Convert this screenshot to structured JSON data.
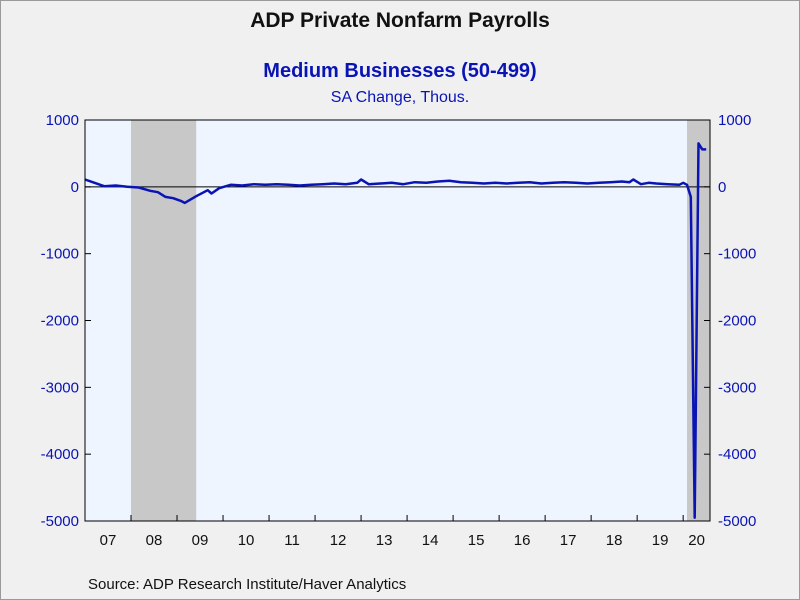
{
  "header": {
    "title": "ADP Private Nonfarm Payrolls",
    "subtitle": "Medium Businesses (50-499)",
    "units": "SA Change, Thous."
  },
  "footer": {
    "source": "Source:  ADP Research Institute/Haver Analytics"
  },
  "colors": {
    "series": "#0a14b4",
    "plot_background": "#eef5ff",
    "recession": "#c8c8c8",
    "axis_text": "#0a14b4"
  },
  "chart_data": {
    "type": "line",
    "title": "ADP Private Nonfarm Payrolls",
    "subtitle": "Medium Businesses (50-499)",
    "ylabel": "SA Change, Thous.",
    "ylim": [
      -5000,
      1000
    ],
    "yticks": [
      1000,
      0,
      -1000,
      -2000,
      -3000,
      -4000,
      -5000
    ],
    "y_axis_both_sides": true,
    "xlim": [
      "2007-01",
      "2020-08"
    ],
    "xtick_labels": [
      "07",
      "08",
      "09",
      "10",
      "11",
      "12",
      "13",
      "14",
      "15",
      "16",
      "17",
      "18",
      "19",
      "20"
    ],
    "zero_line": true,
    "grid": false,
    "recessions": [
      {
        "start": "2008-01",
        "end": "2009-06"
      },
      {
        "start": "2020-02",
        "end": "2020-08"
      }
    ],
    "series": [
      {
        "x": [
          "2007-01",
          "2007-03",
          "2007-06",
          "2007-09",
          "2007-12",
          "2008-03",
          "2008-06",
          "2008-08",
          "2008-10",
          "2008-12",
          "2009-02",
          "2009-03",
          "2009-06",
          "2009-09",
          "2009-10",
          "2009-12",
          "2010-03",
          "2010-06",
          "2010-09",
          "2010-12",
          "2011-03",
          "2011-06",
          "2011-09",
          "2011-12",
          "2012-03",
          "2012-06",
          "2012-09",
          "2012-12",
          "2013-01",
          "2013-03",
          "2013-06",
          "2013-09",
          "2013-12",
          "2014-03",
          "2014-06",
          "2014-09",
          "2014-12",
          "2015-03",
          "2015-06",
          "2015-09",
          "2015-12",
          "2016-03",
          "2016-06",
          "2016-09",
          "2016-12",
          "2017-03",
          "2017-06",
          "2017-09",
          "2017-12",
          "2018-03",
          "2018-06",
          "2018-09",
          "2018-11",
          "2018-12",
          "2019-02",
          "2019-04",
          "2019-06",
          "2019-09",
          "2019-12",
          "2020-01",
          "2020-02",
          "2020-03",
          "2020-04",
          "2020-05",
          "2020-06",
          "2020-07"
        ],
        "values": [
          110,
          70,
          10,
          20,
          0,
          -10,
          -60,
          -80,
          -150,
          -170,
          -210,
          -240,
          -140,
          -50,
          -100,
          -20,
          30,
          20,
          40,
          30,
          40,
          30,
          20,
          30,
          40,
          50,
          40,
          60,
          110,
          40,
          50,
          60,
          40,
          70,
          60,
          80,
          90,
          70,
          60,
          50,
          60,
          50,
          60,
          70,
          50,
          60,
          70,
          60,
          50,
          60,
          70,
          80,
          70,
          110,
          40,
          60,
          50,
          40,
          30,
          60,
          30,
          -150,
          -4950,
          650,
          560,
          560
        ]
      }
    ],
    "source": "Source:  ADP Research Institute/Haver Analytics"
  }
}
